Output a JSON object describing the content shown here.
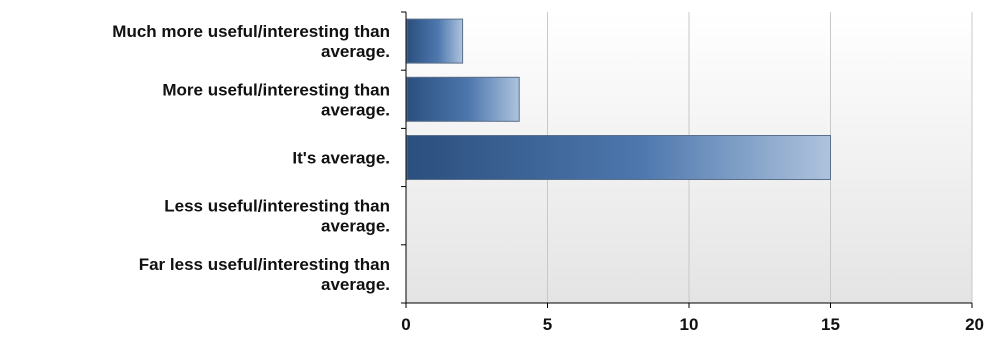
{
  "chart_data": {
    "type": "bar",
    "orientation": "horizontal",
    "categories": [
      [
        "Much more useful/interesting than",
        "average."
      ],
      [
        "More useful/interesting than",
        "average."
      ],
      [
        "It's average."
      ],
      [
        "Less useful/interesting than",
        "average."
      ],
      [
        "Far less useful/interesting than",
        "average."
      ]
    ],
    "values": [
      2,
      4,
      15,
      0,
      0
    ],
    "xlim": [
      0,
      20
    ],
    "xticks": [
      "0",
      "5",
      "10",
      "15",
      "20"
    ],
    "grid": "vertical",
    "title": "",
    "xlabel": "",
    "ylabel": "",
    "colors": {
      "bar_dark": "#2b4f7e",
      "bar_mid": "#4d77ad",
      "bar_light": "#aec3dd",
      "plot_bg_top": "#ffffff",
      "plot_bg_bottom": "#e4e4e4",
      "gridline": "#c8c8c8",
      "axis": "#000000"
    }
  }
}
